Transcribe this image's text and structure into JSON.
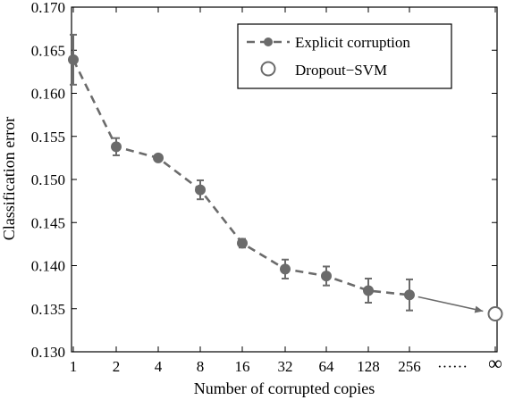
{
  "colors": {
    "series": "#6b6b6b",
    "axis": "#000000",
    "background": "#ffffff"
  },
  "chart_data": {
    "type": "line",
    "title": "",
    "xlabel": "Number of corrupted copies",
    "ylabel": "Classification error",
    "x_scale": "log2 (categorical ticks), with an infinity endpoint",
    "x_tick_labels": [
      "1",
      "2",
      "4",
      "8",
      "16",
      "32",
      "64",
      "128",
      "256",
      "······",
      "∞"
    ],
    "y_tick_labels": [
      "0.130",
      "0.135",
      "0.140",
      "0.145",
      "0.150",
      "0.155",
      "0.160",
      "0.165",
      "0.170"
    ],
    "ylim": [
      0.13,
      0.17
    ],
    "y_ticks": [
      0.13,
      0.135,
      0.14,
      0.145,
      0.15,
      0.155,
      0.16,
      0.165,
      0.17
    ],
    "grid": false,
    "legend_position": "top-right",
    "series": [
      {
        "name": "Explicit corruption",
        "style": "dashed line, filled circle markers, error bars",
        "x": [
          "1",
          "2",
          "4",
          "8",
          "16",
          "32",
          "64",
          "128",
          "256"
        ],
        "values": [
          0.1639,
          0.1538,
          0.1525,
          0.1488,
          0.1426,
          0.1396,
          0.1388,
          0.1371,
          0.1366
        ],
        "error": [
          0.0029,
          0.001,
          0.0003,
          0.0011,
          0.0005,
          0.0011,
          0.0011,
          0.0014,
          0.0018
        ]
      },
      {
        "name": "Dropout−SVM",
        "style": "open circle marker",
        "x": [
          "∞"
        ],
        "values": [
          0.1344
        ]
      }
    ]
  }
}
